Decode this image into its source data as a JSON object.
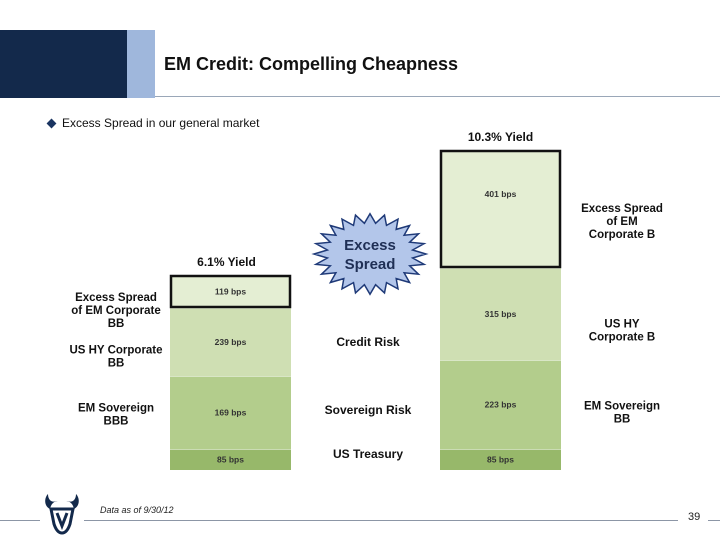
{
  "header": {
    "title": "EM Credit: Compelling Cheapness",
    "colors": {
      "dark_band": "#13294b",
      "light_band": "#9fb7dc"
    }
  },
  "bullet": {
    "icon": "diamond-bullet-icon",
    "text": "Excess Spread in our general market"
  },
  "chart_data": {
    "type": "bar",
    "stacked": true,
    "categories": [
      "6.1% Yield",
      "10.3% Yield"
    ],
    "series": [
      {
        "name": "US Treasury",
        "values": [
          85,
          85
        ],
        "labels": [
          "85 bps",
          "85 bps"
        ],
        "color": "#97b86a"
      },
      {
        "name": "Sovereign Risk",
        "values": [
          169,
          223
        ],
        "labels": [
          "169 bps",
          "223 bps"
        ],
        "color": "#b3cd8c"
      },
      {
        "name": "Credit Risk",
        "values": [
          239,
          315
        ],
        "labels": [
          "239 bps",
          "315 bps"
        ],
        "color": "#cfdfb3"
      },
      {
        "name": "Excess Spread",
        "values": [
          119,
          401
        ],
        "labels": [
          "119 bps",
          "401 bps"
        ],
        "color": "#e4eed3"
      }
    ],
    "left_labels": [
      "EM Sovereign BBB",
      "US HY Corporate BB",
      "Excess Spread of EM Corporate BB"
    ],
    "right_labels": [
      "EM Sovereign BB",
      "US HY Corporate B",
      "Excess Spread of EM Corporate B"
    ],
    "starburst": {
      "line1": "Excess",
      "line2": "Spread",
      "color": "#b3c6ea"
    }
  },
  "footer": {
    "footnote": "Data as of 9/30/12",
    "page_number": "39",
    "logo_icon": "bull-head-logo-icon"
  }
}
